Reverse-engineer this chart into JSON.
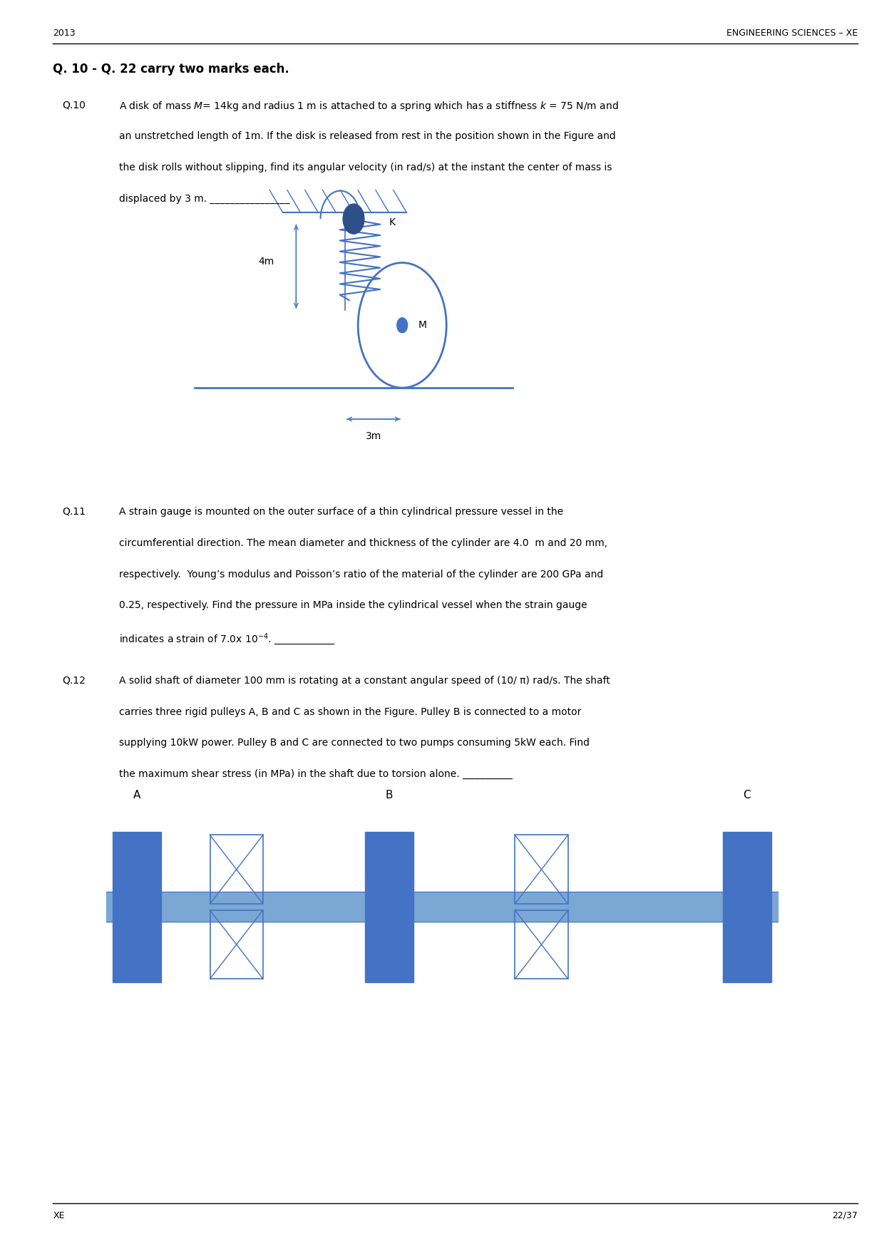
{
  "page_width": 12.4,
  "page_height": 17.55,
  "bg_color": "#ffffff",
  "header_year": "2013",
  "header_title": "ENGINEERING SCIENCES – XE",
  "section_title": "Q. 10 - Q. 22 carry two marks each.",
  "footer_left": "XE",
  "footer_right": "22/37",
  "q10_label": "Q.10",
  "q10_text": "A disk of mass   = 14kg and radius 1 m is attached to a spring which has a stiffness   = 75 N/m and\nan unstretched length of 1m. If the disk is released from rest in the position shown in the Figure and\nthe disk rolls without slipping, find its angular velocity (in rad/s) at the instant the center of mass is\ndisplaced by 3 m. ________________",
  "q11_label": "Q.11",
  "q11_text": "A strain gauge is mounted on the outer surface of a thin cylindrical pressure vessel in the\ncircumferential direction. The mean diameter and thickness of the cylinder are 4.0  m and 20 mm,\nrespectively.  Young’s modulus and Poisson’s ratio of the material of the cylinder are 200 GPa and\n0.25, respectively. Find the pressure in MPa inside the cylindrical vessel when the strain gauge\nindicates a strain of 7.0x 10⁻⁴. ____________",
  "q12_label": "Q.12",
  "q12_text": "A solid shaft of diameter 100 mm is rotating at a constant angular speed of (10/ π) rad/s. The shaft\ncarries three rigid pulleys A, B and C as shown in the Figure. Pulley B is connected to a motor\nsupplying 10kW power. Pulley B and C are connected to two pumps consuming 5kW each. Find\nthe maximum shear stress (in MPa) in the shaft due to torsion alone. __________",
  "draw_color": "#4472C4",
  "dark_blue": "#1F3864",
  "text_color": "#000000"
}
